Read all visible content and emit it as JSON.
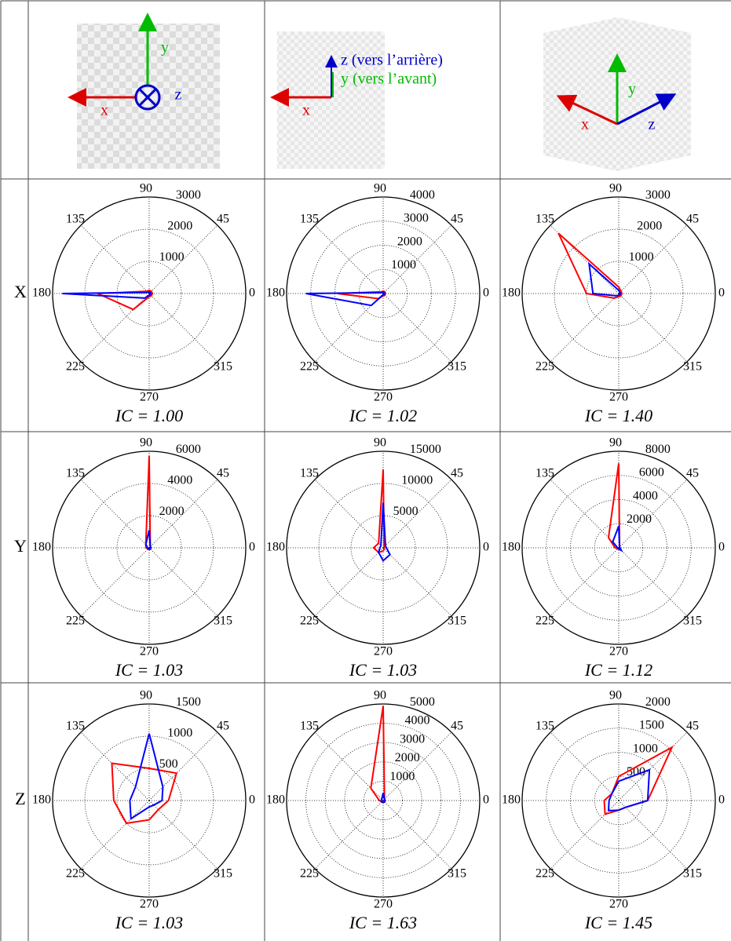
{
  "table": {
    "row_labels": [
      "X",
      "Y",
      "Z"
    ],
    "header": [
      [
        "x",
        "y",
        "z"
      ],
      [
        "x",
        "y (vers l’avant)",
        "z (vers l’arrière)"
      ],
      [
        "x",
        "y",
        "z"
      ]
    ]
  },
  "chart_data": [
    {
      "type": "polar",
      "x": [
        0,
        45,
        90,
        135,
        180,
        225,
        270,
        315
      ],
      "thetaticks": [
        0,
        45,
        90,
        135,
        180,
        225,
        270,
        315
      ],
      "rlim": [
        0,
        3000
      ],
      "rticks": [
        1000,
        2000,
        3000
      ],
      "series": [
        {
          "color": "#ff0000",
          "values": [
            100,
            100,
            100,
            100,
            1600,
            700,
            100,
            100
          ]
        },
        {
          "color": "#0000ff",
          "values": [
            50,
            50,
            50,
            50,
            2700,
            200,
            50,
            50
          ]
        }
      ],
      "annotation": "IC = 1.00"
    },
    {
      "type": "polar",
      "x": [
        0,
        45,
        90,
        135,
        180,
        225,
        270,
        315
      ],
      "thetaticks": [
        0,
        45,
        90,
        135,
        180,
        225,
        270,
        315
      ],
      "rlim": [
        0,
        4000
      ],
      "rticks": [
        1000,
        2000,
        3000,
        4000
      ],
      "series": [
        {
          "color": "#ff0000",
          "values": [
            100,
            100,
            100,
            100,
            1900,
            300,
            100,
            100
          ]
        },
        {
          "color": "#0000ff",
          "values": [
            50,
            50,
            50,
            50,
            3200,
            700,
            50,
            50
          ]
        }
      ],
      "annotation": "IC = 1.02"
    },
    {
      "type": "polar",
      "x": [
        0,
        45,
        90,
        135,
        180,
        225,
        270,
        315
      ],
      "thetaticks": [
        0,
        45,
        90,
        135,
        180,
        225,
        270,
        315
      ],
      "rlim": [
        0,
        3000
      ],
      "rticks": [
        1000,
        2000,
        3000
      ],
      "series": [
        {
          "color": "#ff0000",
          "values": [
            100,
            100,
            200,
            2650,
            1000,
            200,
            100,
            100
          ]
        },
        {
          "color": "#0000ff",
          "values": [
            50,
            50,
            100,
            1300,
            800,
            100,
            50,
            50
          ]
        }
      ],
      "annotation": "IC = 1.40"
    },
    {
      "type": "polar",
      "x": [
        0,
        45,
        90,
        135,
        180,
        225,
        270,
        315
      ],
      "thetaticks": [
        0,
        45,
        90,
        135,
        180,
        225,
        270,
        315
      ],
      "rlim": [
        0,
        6000
      ],
      "rticks": [
        2000,
        4000,
        6000
      ],
      "series": [
        {
          "color": "#ff0000",
          "values": [
            100,
            100,
            5700,
            300,
            200,
            100,
            100,
            100
          ]
        },
        {
          "color": "#0000ff",
          "values": [
            100,
            100,
            1100,
            300,
            100,
            100,
            100,
            100
          ]
        }
      ],
      "annotation": "IC = 1.03"
    },
    {
      "type": "polar",
      "x": [
        0,
        45,
        90,
        135,
        180,
        225,
        270,
        315
      ],
      "thetaticks": [
        0,
        45,
        90,
        135,
        180,
        225,
        270,
        315
      ],
      "rlim": [
        0,
        15000
      ],
      "rticks": [
        5000,
        10000,
        15000
      ],
      "series": [
        {
          "color": "#ff0000",
          "values": [
            200,
            200,
            12200,
            1000,
            1500,
            1000,
            500,
            200
          ]
        },
        {
          "color": "#0000ff",
          "values": [
            500,
            500,
            7000,
            500,
            500,
            1000,
            2000,
            1500
          ]
        }
      ],
      "annotation": "IC = 1.03"
    },
    {
      "type": "polar",
      "x": [
        0,
        45,
        90,
        135,
        180,
        225,
        270,
        315
      ],
      "thetaticks": [
        0,
        45,
        90,
        135,
        180,
        225,
        270,
        315
      ],
      "rlim": [
        0,
        8000
      ],
      "rticks": [
        2000,
        4000,
        6000,
        8000
      ],
      "series": [
        {
          "color": "#ff0000",
          "values": [
            100,
            100,
            7000,
            1200,
            300,
            100,
            100,
            100
          ]
        },
        {
          "color": "#0000ff",
          "values": [
            100,
            100,
            1800,
            700,
            100,
            100,
            100,
            300
          ]
        }
      ],
      "annotation": "IC = 1.12"
    },
    {
      "type": "polar",
      "x": [
        0,
        45,
        90,
        135,
        180,
        225,
        270,
        315
      ],
      "thetaticks": [
        0,
        45,
        90,
        135,
        180,
        225,
        270,
        315
      ],
      "rlim": [
        0,
        1500
      ],
      "rticks": [
        500,
        1000,
        1500
      ],
      "series": [
        {
          "color": "#ff0000",
          "values": [
            300,
            600,
            500,
            820,
            550,
            500,
            300,
            200
          ]
        },
        {
          "color": "#0000ff",
          "values": [
            200,
            300,
            1040,
            300,
            300,
            400,
            100,
            100
          ]
        }
      ],
      "annotation": "IC = 1.03"
    },
    {
      "type": "polar",
      "x": [
        0,
        45,
        90,
        135,
        180,
        225,
        270,
        315
      ],
      "thetaticks": [
        0,
        45,
        90,
        135,
        180,
        225,
        270,
        315
      ],
      "rlim": [
        0,
        5000
      ],
      "rticks": [
        1000,
        2000,
        3000,
        4000,
        5000
      ],
      "series": [
        {
          "color": "#ff0000",
          "values": [
            100,
            100,
            4900,
            900,
            200,
            100,
            100,
            100
          ]
        },
        {
          "color": "#0000ff",
          "values": [
            100,
            100,
            400,
            100,
            100,
            100,
            100,
            100
          ]
        }
      ],
      "annotation": "IC = 1.63"
    },
    {
      "type": "polar",
      "x": [
        0,
        45,
        90,
        135,
        180,
        225,
        270,
        315
      ],
      "thetaticks": [
        0,
        45,
        90,
        135,
        180,
        225,
        270,
        315
      ],
      "rlim": [
        0,
        2000
      ],
      "rticks": [
        500,
        1000,
        1500,
        2000
      ],
      "series": [
        {
          "color": "#ff0000",
          "values": [
            600,
            1560,
            500,
            200,
            300,
            400,
            200,
            200
          ]
        },
        {
          "color": "#0000ff",
          "values": [
            600,
            900,
            400,
            200,
            200,
            300,
            200,
            200
          ]
        }
      ],
      "annotation": "IC = 1.45"
    }
  ]
}
